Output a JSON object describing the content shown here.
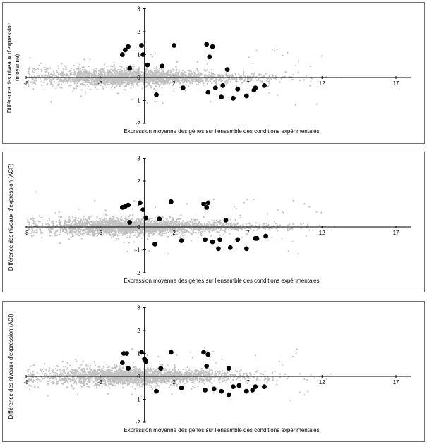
{
  "chart_data": [
    {
      "type": "scatter",
      "title": "",
      "xlabel": "Expression moyenne des gènes sur l'ensemble des conditions expérimentales",
      "ylabel_lines": [
        "Différence des niveaux d'expression",
        "(moyenne)"
      ],
      "xlim": [
        -8,
        18
      ],
      "ylim": [
        -2,
        3
      ],
      "xticks": [
        -8,
        -3,
        2,
        7,
        12,
        17
      ],
      "xtick_labels": [
        "-8",
        "-3",
        "2",
        "7",
        "12",
        "17"
      ],
      "yticks": [
        -2,
        -1,
        0,
        1,
        2,
        3
      ],
      "ytick_labels": [
        "-2",
        "-1",
        "0",
        "1",
        "2",
        "3"
      ],
      "background_colors": {
        "points": "#c0c0c0",
        "highlight": "#000000"
      },
      "highlighted_points": [
        [
          -1.5,
          1.0
        ],
        [
          -1.3,
          1.2
        ],
        [
          -1.1,
          1.35
        ],
        [
          -0.2,
          1.4
        ],
        [
          -0.1,
          1.0
        ],
        [
          0.2,
          0.55
        ],
        [
          2.0,
          1.4
        ],
        [
          -1.0,
          0.4
        ],
        [
          1.2,
          0.5
        ],
        [
          4.2,
          1.45
        ],
        [
          4.6,
          1.35
        ],
        [
          4.4,
          0.9
        ],
        [
          5.6,
          0.35
        ],
        [
          0.8,
          -0.75
        ],
        [
          2.6,
          -0.45
        ],
        [
          4.3,
          -0.65
        ],
        [
          4.8,
          -0.45
        ],
        [
          5.3,
          -0.35
        ],
        [
          5.2,
          -0.85
        ],
        [
          6.0,
          -0.9
        ],
        [
          6.3,
          -0.5
        ],
        [
          6.9,
          -0.8
        ],
        [
          7.5,
          -0.45
        ],
        [
          7.4,
          -0.55
        ],
        [
          8.1,
          -0.35
        ]
      ]
    },
    {
      "type": "scatter",
      "title": "",
      "xlabel": "Expression moyenne des gènes sur l'ensemble des conditions expérimentales",
      "ylabel_lines": [
        "Différence des niveaux d'expression (ACP)"
      ],
      "xlim": [
        -8,
        18
      ],
      "ylim": [
        -2,
        3
      ],
      "xticks": [
        -8,
        -3,
        2,
        7,
        12,
        17
      ],
      "xtick_labels": [
        "-8",
        "-3",
        "2",
        "7",
        "12",
        "17"
      ],
      "yticks": [
        -2,
        -1,
        0,
        1,
        2,
        3
      ],
      "ytick_labels": [
        "-2",
        "-1",
        "0",
        "1",
        "2",
        "3"
      ],
      "background_colors": {
        "points": "#c0c0c0",
        "highlight": "#000000"
      },
      "highlighted_points": [
        [
          -1.5,
          0.85
        ],
        [
          -1.3,
          0.9
        ],
        [
          -1.1,
          0.95
        ],
        [
          -0.3,
          1.05
        ],
        [
          -0.1,
          0.75
        ],
        [
          0.1,
          0.4
        ],
        [
          -1.0,
          0.2
        ],
        [
          1.0,
          0.35
        ],
        [
          1.8,
          1.1
        ],
        [
          4.0,
          1.0
        ],
        [
          4.3,
          1.05
        ],
        [
          4.2,
          0.85
        ],
        [
          5.5,
          0.3
        ],
        [
          0.7,
          -0.75
        ],
        [
          2.5,
          -0.6
        ],
        [
          4.1,
          -0.55
        ],
        [
          4.6,
          -0.65
        ],
        [
          5.1,
          -0.55
        ],
        [
          5.0,
          -0.95
        ],
        [
          5.8,
          -0.9
        ],
        [
          6.3,
          -0.55
        ],
        [
          6.9,
          -0.95
        ],
        [
          7.6,
          -0.5
        ],
        [
          7.5,
          -0.5
        ],
        [
          8.2,
          -0.4
        ]
      ]
    },
    {
      "type": "scatter",
      "title": "",
      "xlabel": "Expression moyenne des gènes sur l'ensemble des conditions expérimentales",
      "ylabel_lines": [
        "Différence des niveaux d'expression (ACI)"
      ],
      "xlim": [
        -8,
        18
      ],
      "ylim": [
        -2,
        3
      ],
      "xticks": [
        -8,
        -3,
        2,
        7,
        12,
        17
      ],
      "xtick_labels": [
        "-8",
        "-3",
        "2",
        "7",
        "12",
        "17"
      ],
      "yticks": [
        -2,
        -1,
        0,
        1,
        2,
        3
      ],
      "ytick_labels": [
        "-2",
        "-1",
        "0",
        "1",
        "2",
        "3"
      ],
      "background_colors": {
        "points": "#c0c0c0",
        "highlight": "#000000"
      },
      "highlighted_points": [
        [
          -1.4,
          1.0
        ],
        [
          -1.2,
          1.0
        ],
        [
          -0.2,
          1.05
        ],
        [
          0.0,
          0.75
        ],
        [
          0.1,
          0.65
        ],
        [
          -1.5,
          0.6
        ],
        [
          -1.1,
          0.35
        ],
        [
          1.1,
          0.35
        ],
        [
          1.8,
          1.05
        ],
        [
          4.0,
          1.05
        ],
        [
          4.3,
          0.95
        ],
        [
          4.2,
          0.45
        ],
        [
          5.7,
          0.35
        ],
        [
          0.8,
          -0.65
        ],
        [
          2.5,
          -0.5
        ],
        [
          4.1,
          -0.6
        ],
        [
          4.7,
          -0.55
        ],
        [
          5.2,
          -0.65
        ],
        [
          5.7,
          -0.8
        ],
        [
          6.0,
          -0.45
        ],
        [
          6.4,
          -0.4
        ],
        [
          6.9,
          -0.65
        ],
        [
          7.5,
          -0.45
        ],
        [
          7.3,
          -0.6
        ],
        [
          8.1,
          -0.45
        ]
      ]
    }
  ]
}
